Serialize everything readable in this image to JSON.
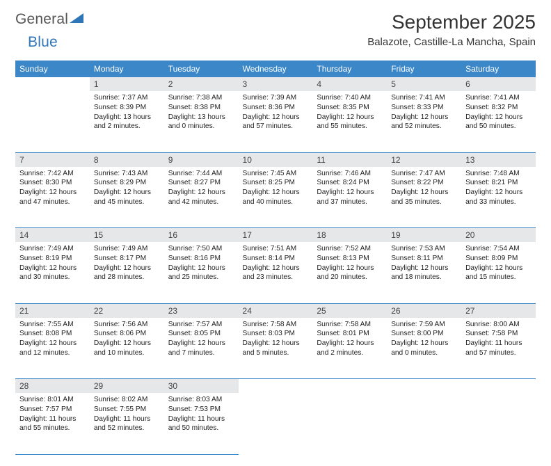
{
  "brand": {
    "part1": "General",
    "part2": "Blue"
  },
  "title": "September 2025",
  "location": "Balazote, Castille-La Mancha, Spain",
  "colors": {
    "header_bg": "#3b87c8",
    "header_text": "#ffffff",
    "daynum_bg": "#e6e7e8",
    "rule": "#3b87c8",
    "brand_gray": "#555555",
    "brand_blue": "#2f76b8"
  },
  "weekdays": [
    "Sunday",
    "Monday",
    "Tuesday",
    "Wednesday",
    "Thursday",
    "Friday",
    "Saturday"
  ],
  "weeks": [
    {
      "nums": [
        "",
        "1",
        "2",
        "3",
        "4",
        "5",
        "6"
      ],
      "cells": [
        null,
        {
          "sunrise": "Sunrise: 7:37 AM",
          "sunset": "Sunset: 8:39 PM",
          "daylight": "Daylight: 13 hours and 2 minutes."
        },
        {
          "sunrise": "Sunrise: 7:38 AM",
          "sunset": "Sunset: 8:38 PM",
          "daylight": "Daylight: 13 hours and 0 minutes."
        },
        {
          "sunrise": "Sunrise: 7:39 AM",
          "sunset": "Sunset: 8:36 PM",
          "daylight": "Daylight: 12 hours and 57 minutes."
        },
        {
          "sunrise": "Sunrise: 7:40 AM",
          "sunset": "Sunset: 8:35 PM",
          "daylight": "Daylight: 12 hours and 55 minutes."
        },
        {
          "sunrise": "Sunrise: 7:41 AM",
          "sunset": "Sunset: 8:33 PM",
          "daylight": "Daylight: 12 hours and 52 minutes."
        },
        {
          "sunrise": "Sunrise: 7:41 AM",
          "sunset": "Sunset: 8:32 PM",
          "daylight": "Daylight: 12 hours and 50 minutes."
        }
      ]
    },
    {
      "nums": [
        "7",
        "8",
        "9",
        "10",
        "11",
        "12",
        "13"
      ],
      "cells": [
        {
          "sunrise": "Sunrise: 7:42 AM",
          "sunset": "Sunset: 8:30 PM",
          "daylight": "Daylight: 12 hours and 47 minutes."
        },
        {
          "sunrise": "Sunrise: 7:43 AM",
          "sunset": "Sunset: 8:29 PM",
          "daylight": "Daylight: 12 hours and 45 minutes."
        },
        {
          "sunrise": "Sunrise: 7:44 AM",
          "sunset": "Sunset: 8:27 PM",
          "daylight": "Daylight: 12 hours and 42 minutes."
        },
        {
          "sunrise": "Sunrise: 7:45 AM",
          "sunset": "Sunset: 8:25 PM",
          "daylight": "Daylight: 12 hours and 40 minutes."
        },
        {
          "sunrise": "Sunrise: 7:46 AM",
          "sunset": "Sunset: 8:24 PM",
          "daylight": "Daylight: 12 hours and 37 minutes."
        },
        {
          "sunrise": "Sunrise: 7:47 AM",
          "sunset": "Sunset: 8:22 PM",
          "daylight": "Daylight: 12 hours and 35 minutes."
        },
        {
          "sunrise": "Sunrise: 7:48 AM",
          "sunset": "Sunset: 8:21 PM",
          "daylight": "Daylight: 12 hours and 33 minutes."
        }
      ]
    },
    {
      "nums": [
        "14",
        "15",
        "16",
        "17",
        "18",
        "19",
        "20"
      ],
      "cells": [
        {
          "sunrise": "Sunrise: 7:49 AM",
          "sunset": "Sunset: 8:19 PM",
          "daylight": "Daylight: 12 hours and 30 minutes."
        },
        {
          "sunrise": "Sunrise: 7:49 AM",
          "sunset": "Sunset: 8:17 PM",
          "daylight": "Daylight: 12 hours and 28 minutes."
        },
        {
          "sunrise": "Sunrise: 7:50 AM",
          "sunset": "Sunset: 8:16 PM",
          "daylight": "Daylight: 12 hours and 25 minutes."
        },
        {
          "sunrise": "Sunrise: 7:51 AM",
          "sunset": "Sunset: 8:14 PM",
          "daylight": "Daylight: 12 hours and 23 minutes."
        },
        {
          "sunrise": "Sunrise: 7:52 AM",
          "sunset": "Sunset: 8:13 PM",
          "daylight": "Daylight: 12 hours and 20 minutes."
        },
        {
          "sunrise": "Sunrise: 7:53 AM",
          "sunset": "Sunset: 8:11 PM",
          "daylight": "Daylight: 12 hours and 18 minutes."
        },
        {
          "sunrise": "Sunrise: 7:54 AM",
          "sunset": "Sunset: 8:09 PM",
          "daylight": "Daylight: 12 hours and 15 minutes."
        }
      ]
    },
    {
      "nums": [
        "21",
        "22",
        "23",
        "24",
        "25",
        "26",
        "27"
      ],
      "cells": [
        {
          "sunrise": "Sunrise: 7:55 AM",
          "sunset": "Sunset: 8:08 PM",
          "daylight": "Daylight: 12 hours and 12 minutes."
        },
        {
          "sunrise": "Sunrise: 7:56 AM",
          "sunset": "Sunset: 8:06 PM",
          "daylight": "Daylight: 12 hours and 10 minutes."
        },
        {
          "sunrise": "Sunrise: 7:57 AM",
          "sunset": "Sunset: 8:05 PM",
          "daylight": "Daylight: 12 hours and 7 minutes."
        },
        {
          "sunrise": "Sunrise: 7:58 AM",
          "sunset": "Sunset: 8:03 PM",
          "daylight": "Daylight: 12 hours and 5 minutes."
        },
        {
          "sunrise": "Sunrise: 7:58 AM",
          "sunset": "Sunset: 8:01 PM",
          "daylight": "Daylight: 12 hours and 2 minutes."
        },
        {
          "sunrise": "Sunrise: 7:59 AM",
          "sunset": "Sunset: 8:00 PM",
          "daylight": "Daylight: 12 hours and 0 minutes."
        },
        {
          "sunrise": "Sunrise: 8:00 AM",
          "sunset": "Sunset: 7:58 PM",
          "daylight": "Daylight: 11 hours and 57 minutes."
        }
      ]
    },
    {
      "nums": [
        "28",
        "29",
        "30",
        "",
        "",
        "",
        ""
      ],
      "cells": [
        {
          "sunrise": "Sunrise: 8:01 AM",
          "sunset": "Sunset: 7:57 PM",
          "daylight": "Daylight: 11 hours and 55 minutes."
        },
        {
          "sunrise": "Sunrise: 8:02 AM",
          "sunset": "Sunset: 7:55 PM",
          "daylight": "Daylight: 11 hours and 52 minutes."
        },
        {
          "sunrise": "Sunrise: 8:03 AM",
          "sunset": "Sunset: 7:53 PM",
          "daylight": "Daylight: 11 hours and 50 minutes."
        },
        null,
        null,
        null,
        null
      ]
    }
  ]
}
